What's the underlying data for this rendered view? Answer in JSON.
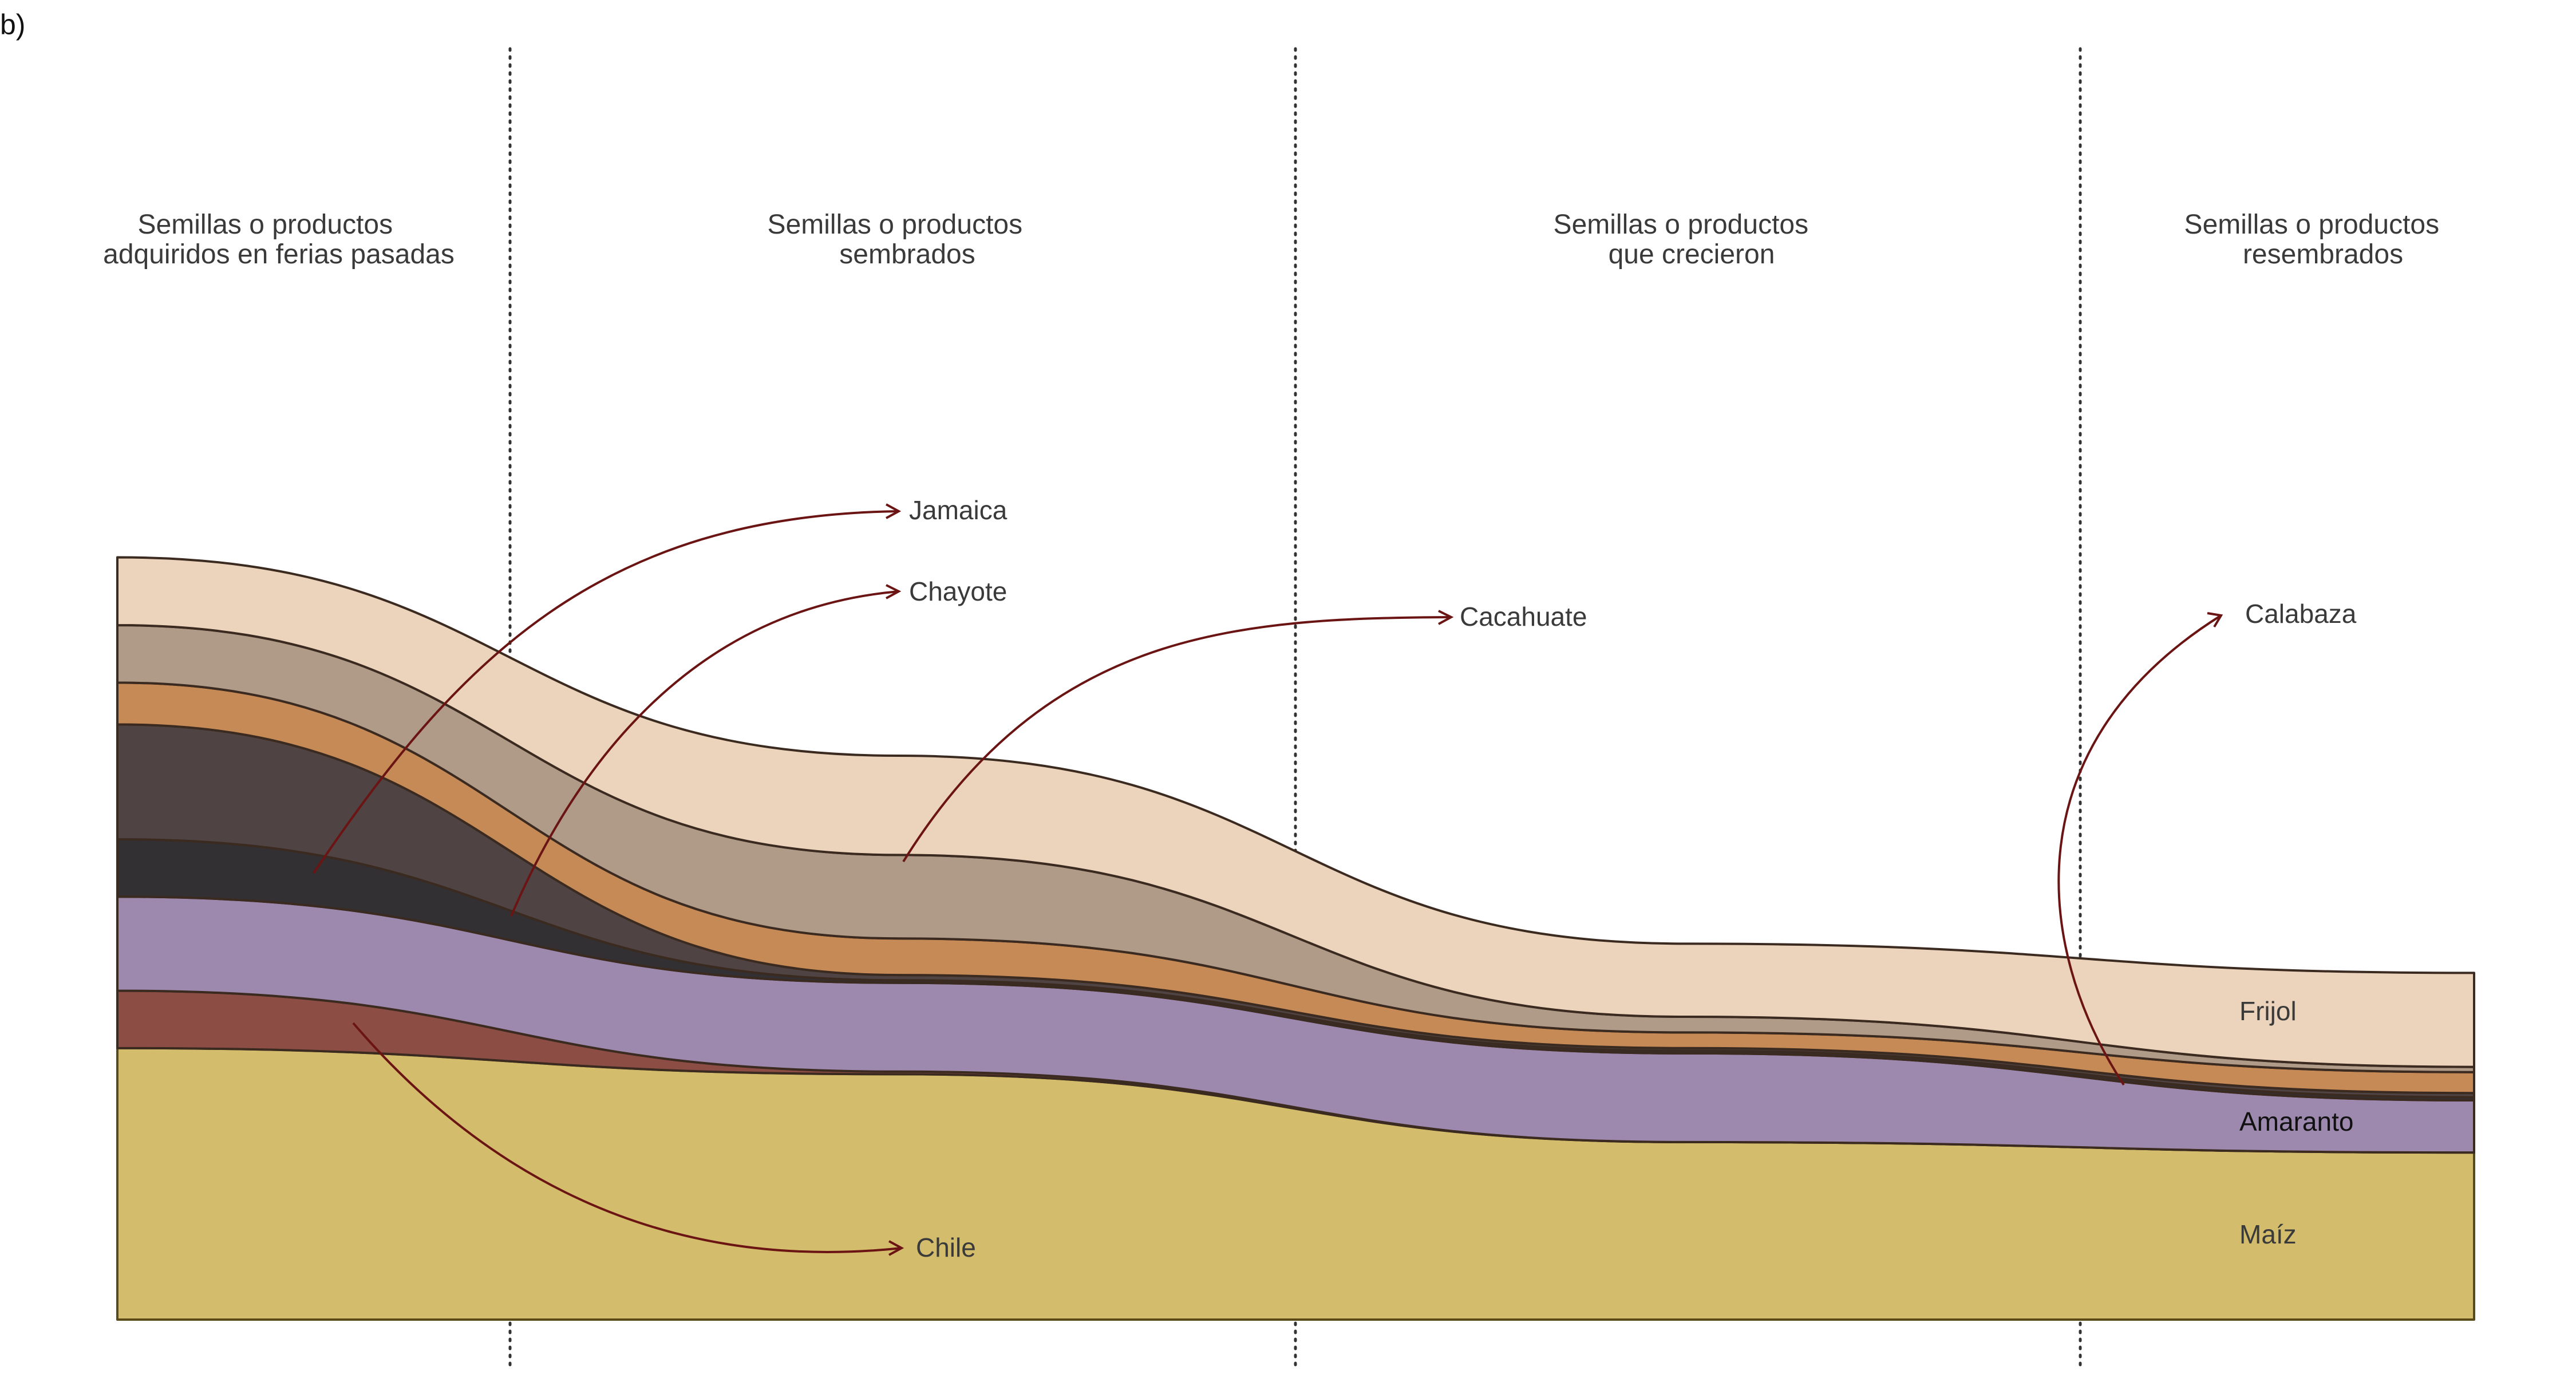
{
  "panel_label": "b)",
  "chart_data": {
    "type": "area",
    "stacked": true,
    "smooth": true,
    "stages": [
      "Semillas o productos adquiridos en ferias pasadas",
      "Semillas o productos sembrados",
      "Semillas o productos que crecieron",
      "Semillas o productos resembrados"
    ],
    "stage_titles": [
      [
        "Semillas o productos",
        "adquiridos en ferias pasadas"
      ],
      [
        "Semillas o productos",
        "sembrados"
      ],
      [
        "Semillas o productos",
        "que crecieron"
      ],
      [
        "Semillas o productos",
        "resembrados"
      ]
    ],
    "series": [
      {
        "name": "Maíz",
        "color": "#d3bd6c",
        "values": [
          52,
          47,
          34,
          32
        ]
      },
      {
        "name": "Chile",
        "color": "#8c4d45",
        "values": [
          11,
          0.5,
          0,
          0
        ]
      },
      {
        "name": "Amaranto",
        "color": "#9e89ae",
        "values": [
          18,
          17,
          17,
          10
        ]
      },
      {
        "name": "Cacahuate",
        "color": "#333033",
        "values": [
          11,
          0.5,
          0.5,
          0.6
        ]
      },
      {
        "name": "Chayote",
        "color": "#4f4443",
        "values": [
          22,
          1,
          0.5,
          0.8
        ]
      },
      {
        "name": "Calabaza",
        "color": "#c68a56",
        "values": [
          8,
          7,
          3,
          4
        ]
      },
      {
        "name": "Chayote/Jamaica",
        "color": "#b09a88",
        "values": [
          11,
          16,
          3,
          1
        ]
      },
      {
        "name": "Frijol",
        "color": "#ecd3bb",
        "values": [
          13,
          19,
          14,
          18
        ]
      }
    ],
    "band_labels": [
      "Frijol",
      "Amaranto",
      "Maíz"
    ],
    "callouts": [
      "Jamaica",
      "Chayote",
      "Cacahuate",
      "Calabaza",
      "Chile"
    ],
    "grid": false,
    "legend": "inline labels"
  }
}
